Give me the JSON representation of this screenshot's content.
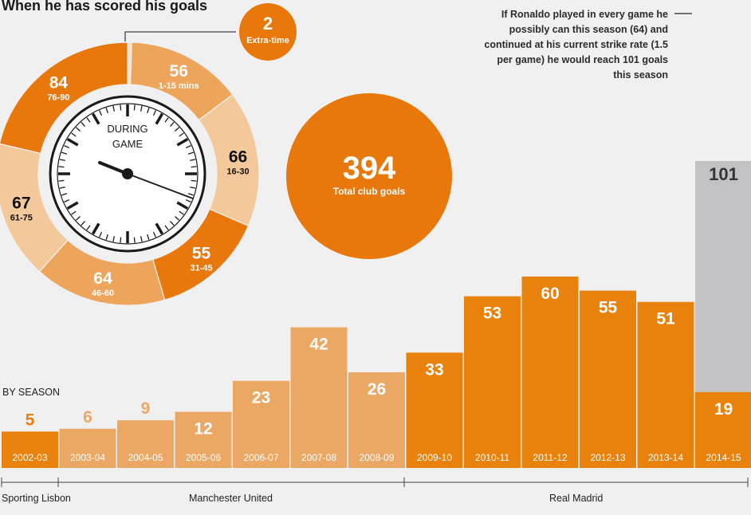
{
  "title": "When he has scored his goals",
  "note": "If Ronaldo played in every game he possibly can this season (64) and continued at his current strike rate (1.5 per game) he would reach 101 goals this season",
  "colors": {
    "man_united": "#eaa864",
    "sporting": "#e8820c",
    "real": "#e8820c",
    "projection": "#c2c2c4",
    "dark_orange": "#e8780c",
    "light_donut": "#f3c99c",
    "mid_donut": "#eda55c"
  },
  "clock": {
    "label_line1": "DURING",
    "label_line2": "GAME"
  },
  "total": {
    "value": "394",
    "label": "Total club goals"
  },
  "extra_time": {
    "value": "2",
    "label": "Extra-time"
  },
  "by_season_label": "BY SEASON",
  "clubs": [
    {
      "name": "Sporting Lisbon"
    },
    {
      "name": "Manchester United"
    },
    {
      "name": "Real Madrid"
    }
  ],
  "chart_data": [
    {
      "type": "pie",
      "title": "When he has scored his goals",
      "variant": "donut",
      "slices": [
        {
          "label": "Extra-time",
          "value": 2
        },
        {
          "label": "1-15 mins",
          "value": 56
        },
        {
          "label": "16-30",
          "value": 66
        },
        {
          "label": "31-45",
          "value": 55
        },
        {
          "label": "46-60",
          "value": 64
        },
        {
          "label": "61-75",
          "value": 67
        },
        {
          "label": "76-90",
          "value": 84
        }
      ],
      "total": 394
    },
    {
      "type": "bar",
      "title": "BY SEASON",
      "categories": [
        "2002-03",
        "2003-04",
        "2004-05",
        "2005-06",
        "2006-07",
        "2007-08",
        "2008-09",
        "2009-10",
        "2010-11",
        "2011-12",
        "2012-13",
        "2013-14",
        "2014-15"
      ],
      "series": [
        {
          "name": "Goals",
          "values": [
            5,
            6,
            9,
            12,
            23,
            42,
            26,
            33,
            53,
            60,
            55,
            51,
            19
          ]
        },
        {
          "name": "Projected",
          "values": [
            null,
            null,
            null,
            null,
            null,
            null,
            null,
            null,
            null,
            null,
            null,
            null,
            101
          ]
        }
      ],
      "club_of_season": [
        "Sporting Lisbon",
        "Manchester United",
        "Manchester United",
        "Manchester United",
        "Manchester United",
        "Manchester United",
        "Manchester United",
        "Real Madrid",
        "Real Madrid",
        "Real Madrid",
        "Real Madrid",
        "Real Madrid",
        "Real Madrid"
      ],
      "ylim": [
        0,
        101
      ]
    }
  ]
}
